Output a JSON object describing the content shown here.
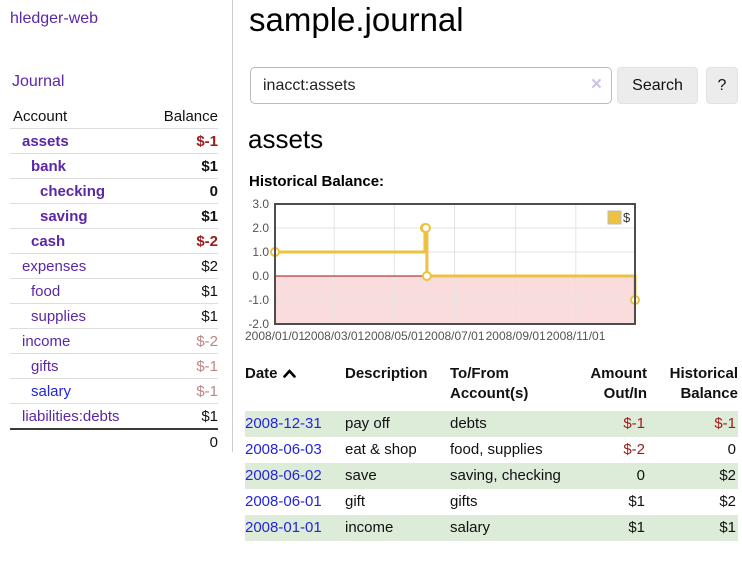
{
  "app": {
    "brand": "hledger-web"
  },
  "nav": {
    "journal": "Journal"
  },
  "sidebar": {
    "header": {
      "account": "Account",
      "balance": "Balance"
    },
    "rows": [
      {
        "name": "assets",
        "balance": "$-1"
      },
      {
        "name": "bank",
        "balance": "$1"
      },
      {
        "name": "checking",
        "balance": "0"
      },
      {
        "name": "saving",
        "balance": "$1"
      },
      {
        "name": "cash",
        "balance": "$-2"
      },
      {
        "name": "expenses",
        "balance": "$2"
      },
      {
        "name": "food",
        "balance": "$1"
      },
      {
        "name": "supplies",
        "balance": "$1"
      },
      {
        "name": "income",
        "balance": "$-2"
      },
      {
        "name": "gifts",
        "balance": "$-1"
      },
      {
        "name": "salary",
        "balance": "$-1"
      },
      {
        "name": "liabilities:debts",
        "balance": "$1"
      }
    ],
    "total": "0"
  },
  "header": {
    "title": "sample.journal"
  },
  "search": {
    "value": "inacct:assets",
    "clear_icon": "×",
    "button_label": "Search",
    "help_label": "?"
  },
  "account": {
    "title": "assets",
    "chart_label": "Historical Balance:"
  },
  "colors": {
    "link_purple": "#5b27a6",
    "link_blue": "#2424dd",
    "negative": "#9c1b1b",
    "negative_faded": "#bf8484",
    "row_stripe_green": "#ddecd8",
    "chart_line_yellow": "#edc240",
    "chart_negative_region": "#fbdcdc",
    "chart_zero_line": "#a01010"
  },
  "chart_data": {
    "type": "line",
    "title": "Historical Balance:",
    "step": true,
    "grid": true,
    "legend_position": "top-right",
    "ylim": [
      -2,
      3
    ],
    "x_range": [
      "2008-01-01",
      "2008-12-31"
    ],
    "y_ticks": [
      3,
      2,
      1,
      0,
      -1,
      -2
    ],
    "y_tick_labels": [
      "3.0",
      "2.0",
      "1.0",
      "0.0",
      "-1.0",
      "-2.0"
    ],
    "x_tick_labels": [
      "2008/01/01",
      "2008/03/01",
      "2008/05/01",
      "2008/07/01",
      "2008/09/01",
      "2008/11/01"
    ],
    "negative_region_color": "#fbdcdc",
    "zero_line_color": "#a01010",
    "grid_color": "#e3e3e3",
    "border_color": "#4d4d4d",
    "tick_label_color": "#545454",
    "series": [
      {
        "name": "$",
        "color": "#edc240",
        "points": [
          [
            "2008-01-01",
            1
          ],
          [
            "2008-06-01",
            2
          ],
          [
            "2008-06-02",
            2
          ],
          [
            "2008-06-03",
            0
          ],
          [
            "2008-12-31",
            -1
          ]
        ]
      }
    ]
  },
  "transactions": {
    "headers": {
      "date": "Date",
      "description": "Description",
      "accounts": "To/From Account(s)",
      "amount": "Amount Out/In",
      "balance": "Historical Balance"
    },
    "rows": [
      {
        "date": "2008-12-31",
        "description": "pay off",
        "accounts": "debts",
        "amount": "$-1",
        "balance": "$-1"
      },
      {
        "date": "2008-06-03",
        "description": "eat & shop",
        "accounts": "food, supplies",
        "amount": "$-2",
        "balance": "0"
      },
      {
        "date": "2008-06-02",
        "description": "save",
        "accounts": "saving, checking",
        "amount": "0",
        "balance": "$2"
      },
      {
        "date": "2008-06-01",
        "description": "gift",
        "accounts": "gifts",
        "amount": "$1",
        "balance": "$2"
      },
      {
        "date": "2008-01-01",
        "description": "income",
        "accounts": "salary",
        "amount": "$1",
        "balance": "$1"
      }
    ]
  }
}
